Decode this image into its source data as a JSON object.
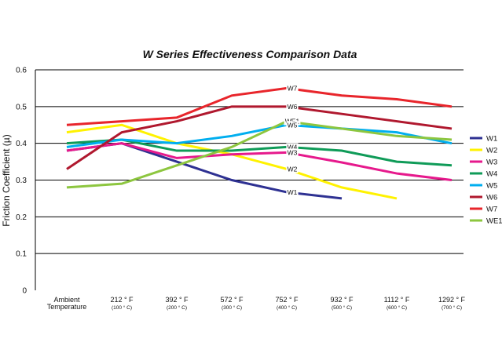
{
  "chart_data": {
    "type": "line",
    "title": "W Series Effectiveness Comparison Data",
    "ylabel": "Friction Coefficient (µ)",
    "xlabel": "",
    "ylim": [
      0,
      0.6
    ],
    "yticks": [
      "0",
      "0.1",
      "0.2",
      "0.3",
      "0.4",
      "0.5",
      "0.6"
    ],
    "grid": "horizontal",
    "legend_position": "right",
    "categories": [
      {
        "main": "Ambient",
        "line2": "Temperature",
        "sub": ""
      },
      {
        "main": "212 ° F",
        "sub": "(100 ° C)"
      },
      {
        "main": "392 ° F",
        "sub": "(200 ° C)"
      },
      {
        "main": "572 ° F",
        "sub": "(300 ° C)"
      },
      {
        "main": "752 ° F",
        "sub": "(400 ° C)"
      },
      {
        "main": "932 ° F",
        "sub": "(500 ° C)"
      },
      {
        "main": "1112 ° F",
        "sub": "(600 ° C)"
      },
      {
        "main": "1292 ° F",
        "sub": "(700 ° C)"
      }
    ],
    "series": [
      {
        "name": "W1",
        "color": "#2e3192",
        "values": [
          0.38,
          0.4,
          0.35,
          0.3,
          0.267,
          0.25,
          null,
          null
        ]
      },
      {
        "name": "W2",
        "color": "#fff200",
        "values": [
          0.43,
          0.45,
          0.4,
          0.37,
          0.33,
          0.28,
          0.25,
          null
        ]
      },
      {
        "name": "W3",
        "color": "#e6198c",
        "values": [
          0.38,
          0.4,
          0.36,
          0.37,
          0.375,
          0.348,
          0.318,
          0.3
        ]
      },
      {
        "name": "W4",
        "color": "#0f9b58",
        "values": [
          0.4,
          0.41,
          0.38,
          0.38,
          0.39,
          0.38,
          0.35,
          0.34
        ]
      },
      {
        "name": "W5",
        "color": "#00aeef",
        "values": [
          0.39,
          0.41,
          0.4,
          0.42,
          0.45,
          0.44,
          0.43,
          0.4
        ]
      },
      {
        "name": "W6",
        "color": "#b0182e",
        "values": [
          0.33,
          0.43,
          0.46,
          0.5,
          0.5,
          0.48,
          0.46,
          0.44
        ]
      },
      {
        "name": "W7",
        "color": "#e8252b",
        "values": [
          0.45,
          0.46,
          0.47,
          0.53,
          0.55,
          0.53,
          0.52,
          0.5
        ]
      },
      {
        "name": "WE1",
        "color": "#8dc63f",
        "values": [
          0.28,
          0.29,
          0.34,
          0.39,
          0.46,
          0.44,
          0.42,
          0.41
        ]
      }
    ],
    "annotations": [
      {
        "text": "W7",
        "series": "W7",
        "point": 4
      },
      {
        "text": "W6",
        "series": "W6",
        "point": 4
      },
      {
        "text": "WE1",
        "series": "WE1",
        "point": 4
      },
      {
        "text": "W5",
        "series": "W5",
        "point": 4
      },
      {
        "text": "W4",
        "series": "W4",
        "point": 4
      },
      {
        "text": "W3",
        "series": "W3",
        "point": 4
      },
      {
        "text": "W2",
        "series": "W2",
        "point": 4
      },
      {
        "text": "W1",
        "series": "W1",
        "point": 4
      }
    ]
  }
}
